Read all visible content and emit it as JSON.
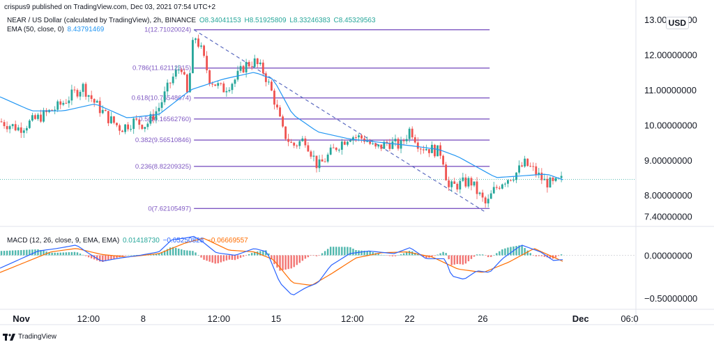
{
  "header": {
    "published": "crispus9 published on TradingView.com, Dec 03, 2021 07:54 UTC+2"
  },
  "legend": {
    "symbol": "NEAR / US Dollar (calculated by TradingView), 2h, BINANCE",
    "open": "O8.34041153",
    "high": "H8.51925809",
    "low": "L8.33246383",
    "close": "C8.45329563",
    "ema_label": "EMA (50, close, 0)",
    "ema_value": "8.43791469",
    "macd_label": "MACD (12, 26, close, 9, EMA, EMA)",
    "macd_hist": "0.01418730",
    "macd_line": "−0.05250828",
    "macd_signal": "−0.06669557"
  },
  "currency": "USD",
  "footer": {
    "brand": "TradingView"
  },
  "colors": {
    "up": "#26a69a",
    "down": "#ef5350",
    "ema": "#2196f3",
    "fib": "#7e57c2",
    "macd": "#2962ff",
    "signal": "#ff6d00",
    "hist_up": "#26a69a",
    "hist_down": "#ef5350"
  },
  "chart_data": [
    {
      "type": "candlestick",
      "name": "price",
      "y_ticks": [
        "13.00000000",
        "12.00000000",
        "11.00000000",
        "10.00000000",
        "9.00000000",
        "8.00000000",
        "7.40000000"
      ],
      "y_tick_values": [
        13,
        12,
        11,
        10,
        9,
        8,
        7.4
      ],
      "ylim": [
        7.25,
        13.2
      ],
      "x_ticks": [
        "Nov",
        "12:00",
        "8",
        "12:00",
        "15",
        "12:00",
        "22",
        "26",
        "Dec",
        "06:0"
      ],
      "current_price": 8.45,
      "fib_levels": [
        {
          "label": "1(12.71020024)",
          "value": 12.71
        },
        {
          "label": "0.786(11.62112315)",
          "value": 11.62
        },
        {
          "label": "0.618(10.76548674)",
          "value": 10.77
        },
        {
          "label": "0.5(10.16562760)",
          "value": 10.17
        },
        {
          "label": "0.382(9.56510846)",
          "value": 9.57
        },
        {
          "label": "0.236(8.82209325)",
          "value": 8.82
        },
        {
          "label": "0(7.62105497)",
          "value": 7.62
        }
      ],
      "trendline": {
        "from": [
          0.305,
          12.71
        ],
        "to": [
          0.765,
          7.5
        ]
      },
      "close_path": [
        [
          0.0,
          10.1
        ],
        [
          0.03,
          9.9
        ],
        [
          0.06,
          10.2
        ],
        [
          0.09,
          10.5
        ],
        [
          0.11,
          10.8
        ],
        [
          0.13,
          11.1
        ],
        [
          0.15,
          10.6
        ],
        [
          0.17,
          10.2
        ],
        [
          0.19,
          9.9
        ],
        [
          0.21,
          10.1
        ],
        [
          0.23,
          10.0
        ],
        [
          0.25,
          10.5
        ],
        [
          0.27,
          11.3
        ],
        [
          0.285,
          11.7
        ],
        [
          0.295,
          10.8
        ],
        [
          0.305,
          12.6
        ],
        [
          0.315,
          12.2
        ],
        [
          0.33,
          11.3
        ],
        [
          0.35,
          11.0
        ],
        [
          0.37,
          11.3
        ],
        [
          0.385,
          11.7
        ],
        [
          0.4,
          11.8
        ],
        [
          0.415,
          11.5
        ],
        [
          0.43,
          10.8
        ],
        [
          0.445,
          9.8
        ],
        [
          0.46,
          9.4
        ],
        [
          0.48,
          9.6
        ],
        [
          0.5,
          8.8
        ],
        [
          0.515,
          9.1
        ],
        [
          0.53,
          9.4
        ],
        [
          0.55,
          9.7
        ],
        [
          0.575,
          9.6
        ],
        [
          0.59,
          9.3
        ],
        [
          0.61,
          9.5
        ],
        [
          0.63,
          9.4
        ],
        [
          0.645,
          9.9
        ],
        [
          0.66,
          9.4
        ],
        [
          0.68,
          9.3
        ],
        [
          0.695,
          9.2
        ],
        [
          0.705,
          8.2
        ],
        [
          0.72,
          8.3
        ],
        [
          0.74,
          8.4
        ],
        [
          0.75,
          8.1
        ],
        [
          0.765,
          7.7
        ],
        [
          0.775,
          8.1
        ],
        [
          0.79,
          8.4
        ],
        [
          0.81,
          8.6
        ],
        [
          0.825,
          8.9
        ],
        [
          0.84,
          8.7
        ],
        [
          0.855,
          8.4
        ],
        [
          0.87,
          8.3
        ],
        [
          0.885,
          8.45
        ]
      ],
      "ema_path": [
        [
          0.0,
          10.8
        ],
        [
          0.05,
          10.4
        ],
        [
          0.1,
          10.4
        ],
        [
          0.15,
          10.6
        ],
        [
          0.2,
          10.2
        ],
        [
          0.25,
          10.3
        ],
        [
          0.3,
          11.0
        ],
        [
          0.35,
          11.3
        ],
        [
          0.4,
          11.5
        ],
        [
          0.43,
          11.3
        ],
        [
          0.46,
          10.3
        ],
        [
          0.5,
          9.8
        ],
        [
          0.55,
          9.6
        ],
        [
          0.6,
          9.5
        ],
        [
          0.65,
          9.4
        ],
        [
          0.69,
          9.3
        ],
        [
          0.72,
          9.1
        ],
        [
          0.75,
          8.8
        ],
        [
          0.78,
          8.5
        ],
        [
          0.82,
          8.55
        ],
        [
          0.86,
          8.6
        ],
        [
          0.885,
          8.44
        ]
      ]
    },
    {
      "type": "macd",
      "name": "MACD",
      "y_ticks": [
        "0.00000000",
        "−0.50000000"
      ],
      "y_tick_values": [
        0,
        -0.5
      ],
      "ylim": [
        -0.58,
        0.28
      ],
      "macd_path": [
        [
          0.0,
          -0.15
        ],
        [
          0.03,
          -0.05
        ],
        [
          0.06,
          0.05
        ],
        [
          0.09,
          0.08
        ],
        [
          0.12,
          0.12
        ],
        [
          0.14,
          0.02
        ],
        [
          0.16,
          -0.07
        ],
        [
          0.19,
          -0.03
        ],
        [
          0.22,
          0.0
        ],
        [
          0.25,
          0.04
        ],
        [
          0.27,
          0.18
        ],
        [
          0.29,
          0.2
        ],
        [
          0.305,
          0.22
        ],
        [
          0.32,
          0.15
        ],
        [
          0.34,
          0.03
        ],
        [
          0.37,
          0.0
        ],
        [
          0.4,
          0.08
        ],
        [
          0.42,
          0.04
        ],
        [
          0.44,
          -0.32
        ],
        [
          0.46,
          -0.47
        ],
        [
          0.48,
          -0.38
        ],
        [
          0.5,
          -0.32
        ],
        [
          0.52,
          -0.12
        ],
        [
          0.55,
          0.02
        ],
        [
          0.58,
          0.05
        ],
        [
          0.62,
          0.02
        ],
        [
          0.645,
          0.09
        ],
        [
          0.67,
          -0.04
        ],
        [
          0.7,
          -0.04
        ],
        [
          0.71,
          -0.24
        ],
        [
          0.73,
          -0.28
        ],
        [
          0.75,
          -0.18
        ],
        [
          0.77,
          -0.2
        ],
        [
          0.79,
          -0.04
        ],
        [
          0.82,
          0.12
        ],
        [
          0.85,
          0.04
        ],
        [
          0.87,
          -0.06
        ],
        [
          0.885,
          -0.05
        ]
      ],
      "signal_path": [
        [
          0.0,
          -0.2
        ],
        [
          0.04,
          -0.08
        ],
        [
          0.08,
          0.04
        ],
        [
          0.12,
          0.08
        ],
        [
          0.16,
          0.01
        ],
        [
          0.2,
          -0.02
        ],
        [
          0.25,
          0.02
        ],
        [
          0.29,
          0.14
        ],
        [
          0.32,
          0.2
        ],
        [
          0.36,
          0.06
        ],
        [
          0.4,
          0.04
        ],
        [
          0.43,
          -0.05
        ],
        [
          0.46,
          -0.32
        ],
        [
          0.49,
          -0.35
        ],
        [
          0.52,
          -0.22
        ],
        [
          0.56,
          -0.03
        ],
        [
          0.6,
          0.03
        ],
        [
          0.64,
          0.04
        ],
        [
          0.68,
          -0.02
        ],
        [
          0.72,
          -0.16
        ],
        [
          0.76,
          -0.2
        ],
        [
          0.8,
          -0.08
        ],
        [
          0.84,
          0.08
        ],
        [
          0.885,
          -0.07
        ]
      ]
    }
  ]
}
